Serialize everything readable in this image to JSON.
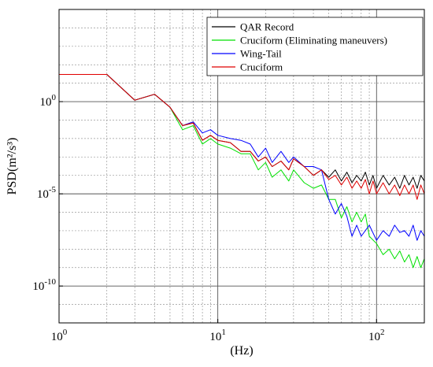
{
  "chart_data": {
    "type": "line",
    "title": "",
    "xlabel": "(Hz)",
    "ylabel": "PSD(m²/s³)",
    "x_scale": "log",
    "y_scale": "log",
    "xlim": [
      1,
      200
    ],
    "ylim": [
      1e-12,
      100000.0
    ],
    "grid": true,
    "legend_placement": "top-right",
    "x_ticks": [
      {
        "value": 1,
        "base": "10",
        "exp": "0"
      },
      {
        "value": 10,
        "base": "10",
        "exp": "1"
      },
      {
        "value": 100,
        "base": "10",
        "exp": "2"
      }
    ],
    "y_ticks": [
      {
        "value": 1,
        "base": "10",
        "exp": "0"
      },
      {
        "value": 1e-05,
        "base": "10",
        "exp": "-5"
      },
      {
        "value": 1e-10,
        "base": "10",
        "exp": "-10"
      }
    ],
    "series": [
      {
        "name": "QAR Record",
        "color": "#000000",
        "points": [
          [
            1,
            30
          ],
          [
            2,
            30
          ],
          [
            3,
            1.2
          ],
          [
            4,
            2.5
          ],
          [
            5,
            0.5
          ],
          [
            6,
            0.05
          ],
          [
            7,
            0.07
          ],
          [
            8,
            0.008
          ],
          [
            9,
            0.015
          ],
          [
            10,
            0.008
          ],
          [
            12,
            0.006
          ],
          [
            14,
            0.002
          ],
          [
            16,
            0.002
          ],
          [
            18,
            0.0006
          ],
          [
            20,
            0.001
          ],
          [
            22,
            0.0003
          ],
          [
            25,
            0.0006
          ],
          [
            28,
            0.0002
          ],
          [
            30,
            0.0008
          ],
          [
            35,
            0.0003
          ],
          [
            40,
            0.0001
          ],
          [
            45,
            0.0002
          ],
          [
            50,
            8e-05
          ],
          [
            55,
            0.0002
          ],
          [
            60,
            5e-05
          ],
          [
            65,
            0.00015
          ],
          [
            70,
            4e-05
          ],
          [
            75,
            0.0001
          ],
          [
            80,
            5e-05
          ],
          [
            85,
            0.00015
          ],
          [
            90,
            3e-05
          ],
          [
            95,
            0.0001
          ],
          [
            100,
            2e-05
          ],
          [
            110,
            0.0001
          ],
          [
            120,
            3e-05
          ],
          [
            130,
            8e-05
          ],
          [
            140,
            2e-05
          ],
          [
            150,
            0.0001
          ],
          [
            160,
            3e-05
          ],
          [
            170,
            8e-05
          ],
          [
            180,
            2e-05
          ],
          [
            190,
            0.0001
          ],
          [
            200,
            5e-05
          ]
        ]
      },
      {
        "name": "Cruciform (Eliminating maneuvers)",
        "color": "#00e000",
        "points": [
          [
            1,
            30
          ],
          [
            2,
            30
          ],
          [
            3,
            1.2
          ],
          [
            4,
            2.5
          ],
          [
            5,
            0.5
          ],
          [
            6,
            0.03
          ],
          [
            7,
            0.05
          ],
          [
            8,
            0.005
          ],
          [
            9,
            0.01
          ],
          [
            10,
            0.005
          ],
          [
            12,
            0.003
          ],
          [
            14,
            0.0015
          ],
          [
            16,
            0.0015
          ],
          [
            18,
            0.0002
          ],
          [
            20,
            0.0005
          ],
          [
            22,
            8e-05
          ],
          [
            25,
            0.0002
          ],
          [
            28,
            5e-05
          ],
          [
            30,
            0.0002
          ],
          [
            35,
            4e-05
          ],
          [
            40,
            2e-05
          ],
          [
            45,
            3e-05
          ],
          [
            50,
            5e-06
          ],
          [
            55,
            5e-06
          ],
          [
            60,
            5e-07
          ],
          [
            65,
            2e-06
          ],
          [
            70,
            3e-07
          ],
          [
            75,
            1e-06
          ],
          [
            80,
            3e-07
          ],
          [
            85,
            8e-07
          ],
          [
            90,
            5e-08
          ],
          [
            100,
            2e-08
          ],
          [
            110,
            5e-09
          ],
          [
            120,
            1e-08
          ],
          [
            130,
            3e-09
          ],
          [
            140,
            8e-09
          ],
          [
            150,
            2e-09
          ],
          [
            160,
            5e-09
          ],
          [
            170,
            1e-09
          ],
          [
            180,
            4e-09
          ],
          [
            190,
            1e-09
          ],
          [
            200,
            3e-09
          ]
        ]
      },
      {
        "name": "Wing-Tail",
        "color": "#0000ff",
        "points": [
          [
            1,
            30
          ],
          [
            2,
            30
          ],
          [
            3,
            1.2
          ],
          [
            4,
            2.5
          ],
          [
            5,
            0.5
          ],
          [
            6,
            0.05
          ],
          [
            7,
            0.08
          ],
          [
            8,
            0.02
          ],
          [
            9,
            0.03
          ],
          [
            10,
            0.015
          ],
          [
            12,
            0.01
          ],
          [
            14,
            0.008
          ],
          [
            16,
            0.005
          ],
          [
            18,
            0.001
          ],
          [
            20,
            0.003
          ],
          [
            22,
            0.0005
          ],
          [
            25,
            0.002
          ],
          [
            28,
            0.0005
          ],
          [
            30,
            0.001
          ],
          [
            35,
            0.0003
          ],
          [
            40,
            0.0003
          ],
          [
            45,
            0.0002
          ],
          [
            50,
            5e-06
          ],
          [
            55,
            8e-07
          ],
          [
            60,
            3e-06
          ],
          [
            65,
            6e-07
          ],
          [
            70,
            5e-08
          ],
          [
            75,
            2e-07
          ],
          [
            80,
            5e-08
          ],
          [
            90,
            2e-07
          ],
          [
            100,
            3e-08
          ],
          [
            110,
            1e-07
          ],
          [
            120,
            5e-08
          ],
          [
            130,
            2e-07
          ],
          [
            140,
            8e-08
          ],
          [
            150,
            1e-07
          ],
          [
            160,
            5e-08
          ],
          [
            170,
            2e-07
          ],
          [
            180,
            3e-08
          ],
          [
            190,
            1e-07
          ],
          [
            200,
            5e-08
          ]
        ]
      },
      {
        "name": "Cruciform",
        "color": "#e00000",
        "points": [
          [
            1,
            30
          ],
          [
            2,
            30
          ],
          [
            3,
            1.2
          ],
          [
            4,
            2.5
          ],
          [
            5,
            0.5
          ],
          [
            6,
            0.05
          ],
          [
            7,
            0.07
          ],
          [
            8,
            0.008
          ],
          [
            9,
            0.015
          ],
          [
            10,
            0.008
          ],
          [
            12,
            0.006
          ],
          [
            14,
            0.002
          ],
          [
            16,
            0.002
          ],
          [
            18,
            0.0006
          ],
          [
            20,
            0.001
          ],
          [
            22,
            0.0003
          ],
          [
            25,
            0.0006
          ],
          [
            28,
            0.0002
          ],
          [
            30,
            0.0008
          ],
          [
            35,
            0.0003
          ],
          [
            40,
            0.0001
          ],
          [
            45,
            0.0002
          ],
          [
            50,
            6e-05
          ],
          [
            55,
            0.0001
          ],
          [
            60,
            3e-05
          ],
          [
            65,
            8e-05
          ],
          [
            70,
            2e-05
          ],
          [
            75,
            5e-05
          ],
          [
            80,
            2e-05
          ],
          [
            85,
            6e-05
          ],
          [
            90,
            1e-05
          ],
          [
            95,
            5e-05
          ],
          [
            100,
            1e-05
          ],
          [
            110,
            4e-05
          ],
          [
            120,
            1e-05
          ],
          [
            130,
            3e-05
          ],
          [
            140,
            8e-06
          ],
          [
            150,
            3e-05
          ],
          [
            160,
            1e-05
          ],
          [
            170,
            3e-05
          ],
          [
            180,
            5e-06
          ],
          [
            190,
            3e-05
          ],
          [
            200,
            1e-05
          ]
        ]
      }
    ]
  }
}
